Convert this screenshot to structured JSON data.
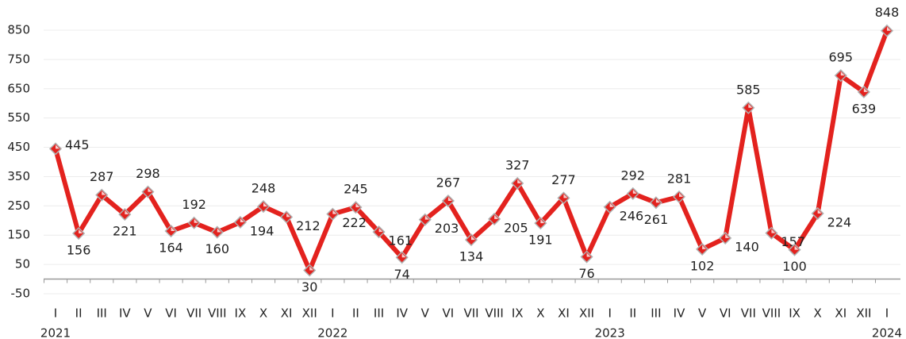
{
  "chart_data": {
    "type": "line",
    "categories": [
      "I",
      "II",
      "III",
      "IV",
      "V",
      "VI",
      "VII",
      "VIII",
      "IX",
      "X",
      "XI",
      "XII",
      "I",
      "II",
      "III",
      "IV",
      "V",
      "VI",
      "VII",
      "VIII",
      "IX",
      "X",
      "XI",
      "XII",
      "I",
      "II",
      "III",
      "IV",
      "V",
      "VI",
      "VII",
      "VIII",
      "IX",
      "X",
      "XI",
      "XII",
      "I"
    ],
    "years": [
      "2021",
      "2022",
      "2023",
      "2024"
    ],
    "series": [
      {
        "color": "#e3221e",
        "values": [
          445,
          156,
          287,
          221,
          298,
          164,
          192,
          160,
          194,
          248,
          212,
          30,
          222,
          245,
          161,
          74,
          203,
          267,
          134,
          205,
          327,
          191,
          277,
          76,
          246,
          292,
          261,
          281,
          102,
          140,
          585,
          157,
          100,
          224,
          695,
          639,
          848
        ]
      }
    ],
    "ylim": [
      -50,
      850
    ],
    "yticks": [
      -50,
      50,
      150,
      250,
      350,
      450,
      550,
      650,
      750,
      850
    ],
    "grid": true
  }
}
